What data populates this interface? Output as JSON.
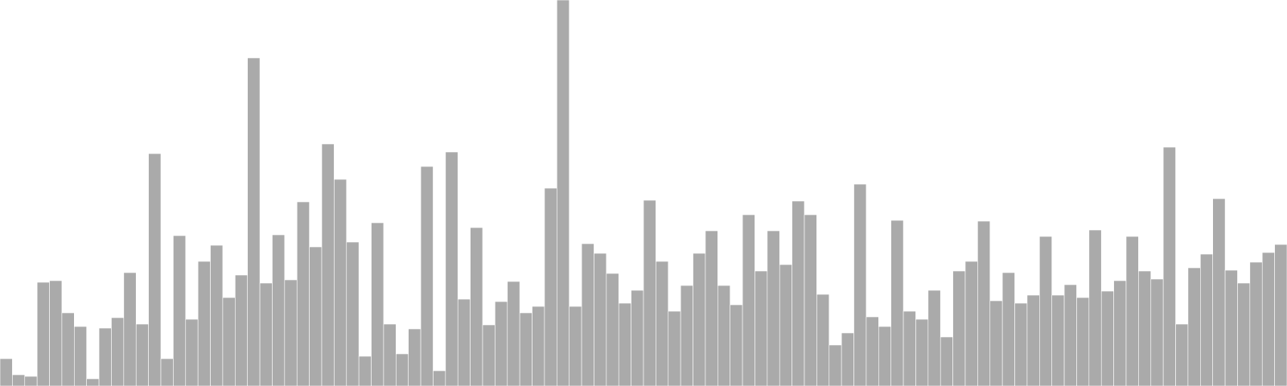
{
  "chart_data": {
    "type": "bar",
    "title": "",
    "xlabel": "",
    "ylabel": "",
    "grid": false,
    "legend": "none",
    "ylim": [
      0,
      480
    ],
    "bar_color": "#aaaaaa",
    "bar_edge_color": "#ffffff",
    "values": [
      34,
      14,
      12,
      129,
      131,
      91,
      74,
      9,
      72,
      85,
      141,
      77,
      289,
      34,
      187,
      83,
      155,
      175,
      110,
      138,
      408,
      128,
      188,
      132,
      229,
      173,
      301,
      257,
      179,
      37,
      203,
      77,
      40,
      71,
      273,
      19,
      291,
      108,
      197,
      76,
      105,
      130,
      91,
      99,
      246,
      480,
      99,
      177,
      165,
      140,
      103,
      119,
      231,
      155,
      93,
      125,
      165,
      193,
      125,
      101,
      213,
      143,
      193,
      151,
      230,
      213,
      114,
      51,
      66,
      251,
      86,
      74,
      206,
      93,
      83,
      119,
      61,
      143,
      155,
      205,
      106,
      141,
      103,
      113,
      186,
      113,
      126,
      110,
      194,
      118,
      131,
      186,
      143,
      133,
      297,
      77,
      147,
      164,
      233,
      144,
      128,
      154,
      166,
      176
    ]
  }
}
